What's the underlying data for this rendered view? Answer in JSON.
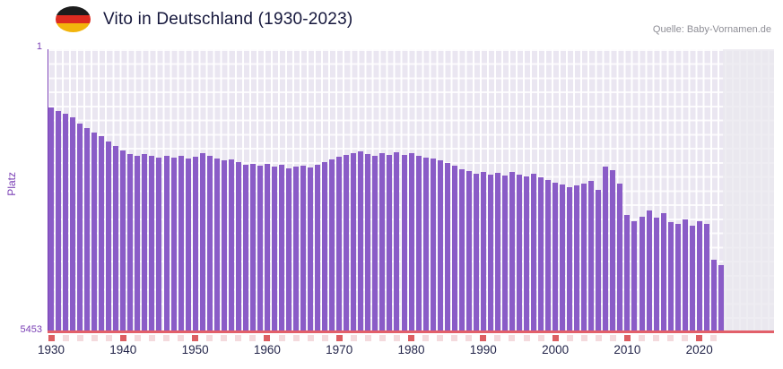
{
  "header": {
    "title": "Vito in Deutschland (1930-2023)",
    "source": "Quelle: Baby-Vornamen.de",
    "flag_icon": "germany-flag"
  },
  "chart_data": {
    "type": "bar",
    "title": "Vito in Deutschland (1930-2023)",
    "ylabel": "Platz",
    "y_tick_top": "1",
    "y_tick_bottom": "5453",
    "ylim": [
      1,
      5453
    ],
    "y_axis_inverted": true,
    "grid": true,
    "year_start": 1930,
    "year_end": 2023,
    "x_tick_labels": [
      "1930",
      "1940",
      "1950",
      "1960",
      "1970",
      "1980",
      "1990",
      "2000",
      "2010",
      "2020"
    ],
    "ranks": [
      1126,
      1195,
      1247,
      1316,
      1437,
      1524,
      1610,
      1679,
      1783,
      1870,
      1956,
      2025,
      2060,
      2025,
      2060,
      2095,
      2060,
      2095,
      2060,
      2112,
      2077,
      2008,
      2060,
      2112,
      2146,
      2129,
      2181,
      2233,
      2215,
      2250,
      2215,
      2267,
      2233,
      2302,
      2267,
      2250,
      2285,
      2233,
      2181,
      2129,
      2077,
      2043,
      2008,
      1973,
      2025,
      2060,
      2008,
      2043,
      1991,
      2043,
      2008,
      2060,
      2095,
      2112,
      2146,
      2198,
      2250,
      2319,
      2354,
      2406,
      2371,
      2423,
      2389,
      2441,
      2371,
      2423,
      2458,
      2406,
      2475,
      2527,
      2579,
      2614,
      2666,
      2631,
      2596,
      2544,
      2718,
      2267,
      2337,
      2596,
      3203,
      3324,
      3237,
      3117,
      3254,
      3168,
      3341,
      3376,
      3289,
      3410,
      3324,
      3376,
      4069,
      4173
    ],
    "colors": {
      "bar": "#8a5cc7",
      "axis_text": "#7a3fb5",
      "x_axis_line": "#e2606a",
      "tick_major": "#dd5f62",
      "tick_minor": "#f4dadd",
      "plot_bg": "#eae6f1",
      "title_text": "#15173c"
    }
  }
}
